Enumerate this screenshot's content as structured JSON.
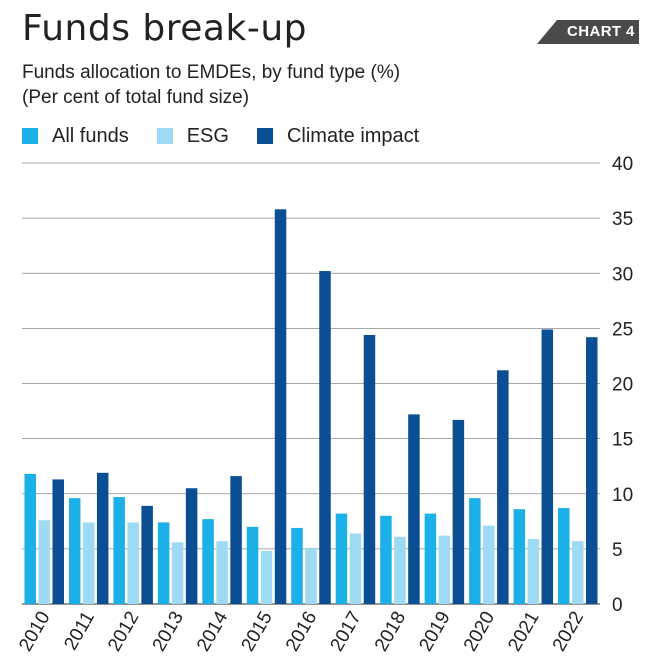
{
  "header": {
    "title": "Funds break-up",
    "badge": "CHART 4",
    "subtitle_line1": "Funds allocation to EMDEs, by fund type (%)",
    "subtitle_line2": "(Per cent of total fund size)"
  },
  "colors": {
    "all_funds": "#1cb0e8",
    "esg": "#9edaf4",
    "climate_impact": "#0a4f94",
    "badge_bg": "#4a4a4a",
    "grid": "#888888"
  },
  "chart_data": {
    "type": "bar",
    "title": "Funds break-up",
    "subtitle": "Funds allocation to EMDEs, by fund type (%)",
    "ylabel": "(Per cent of total fund size)",
    "xlabel": "",
    "categories": [
      "2010",
      "2011",
      "2012",
      "2013",
      "2014",
      "2015",
      "2016",
      "2017",
      "2018",
      "2019",
      "2020",
      "2021",
      "2022"
    ],
    "series": [
      {
        "name": "All funds",
        "color": "#1cb0e8",
        "values": [
          11.8,
          9.6,
          9.7,
          7.4,
          7.7,
          7.0,
          6.9,
          8.2,
          8.0,
          8.2,
          9.6,
          8.6,
          8.7
        ]
      },
      {
        "name": "ESG",
        "color": "#9edaf4",
        "values": [
          7.6,
          7.4,
          7.4,
          5.6,
          5.7,
          4.8,
          5.1,
          6.4,
          6.1,
          6.2,
          7.1,
          5.9,
          5.7
        ]
      },
      {
        "name": "Climate impact",
        "color": "#0a4f94",
        "values": [
          11.3,
          11.9,
          8.9,
          10.5,
          11.6,
          35.8,
          30.2,
          24.4,
          17.2,
          16.7,
          21.2,
          24.9,
          24.2
        ]
      }
    ],
    "ylim": [
      0,
      40
    ],
    "yticks": [
      0,
      5,
      10,
      15,
      20,
      25,
      30,
      35,
      40
    ],
    "y_axis_side": "right",
    "grid": true,
    "legend_position": "top-left"
  }
}
